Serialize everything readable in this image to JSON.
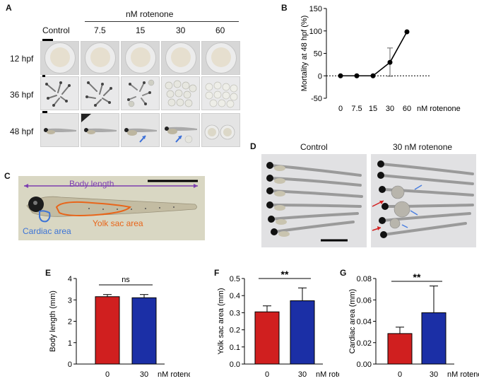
{
  "panel_letters": {
    "a": "A",
    "b": "B",
    "c": "C",
    "d": "D",
    "e": "E",
    "f": "F",
    "g": "G"
  },
  "panelA": {
    "header": "nM rotenone",
    "columns": [
      "Control",
      "7.5",
      "15",
      "30",
      "60"
    ],
    "rows": [
      "12 hpf",
      "36 hpf",
      "48 hpf"
    ]
  },
  "panelC": {
    "body_length_label": "Body length",
    "cardiac_label": "Cardiac area",
    "yolk_label": "Yolk sac area"
  },
  "panelD": {
    "control_label": "Control",
    "treated_label": "30 nM rotenone"
  },
  "chart_data": [
    {
      "panel": "B",
      "type": "line",
      "x": [
        "0",
        "7.5",
        "15",
        "30",
        "60"
      ],
      "y": [
        0,
        0,
        0,
        30,
        98
      ],
      "error_plus": [
        0,
        0,
        0,
        32,
        0
      ],
      "error_minus": [
        0,
        0,
        0,
        31,
        0
      ],
      "ylabel": "Mortality at 48 hpf (%)",
      "xlabel": "nM rotenone",
      "yticks": [
        -50,
        0,
        50,
        100,
        150
      ],
      "ylim": [
        -50,
        150
      ],
      "reference_line": 0
    },
    {
      "panel": "E",
      "type": "bar",
      "categories": [
        "0",
        "30"
      ],
      "values": [
        3.15,
        3.1
      ],
      "errors": [
        0.1,
        0.15
      ],
      "colors": [
        "#d01f1f",
        "#1b2fa6"
      ],
      "ylabel": "Body length (mm)",
      "xlabel": "nM rotenone",
      "yticks": [
        "0",
        "1",
        "2",
        "3",
        "4"
      ],
      "ylim": [
        0,
        4
      ],
      "significance": "ns"
    },
    {
      "panel": "F",
      "type": "bar",
      "categories": [
        "0",
        "30"
      ],
      "values": [
        0.305,
        0.37
      ],
      "errors": [
        0.035,
        0.075
      ],
      "colors": [
        "#d01f1f",
        "#1b2fa6"
      ],
      "ylabel": "Yolk sac area (mm)",
      "xlabel": "nM rotenone",
      "yticks": [
        "0.0",
        "0.1",
        "0.2",
        "0.3",
        "0.4",
        "0.5"
      ],
      "ylim": [
        0,
        0.5
      ],
      "significance": "**"
    },
    {
      "panel": "G",
      "type": "bar",
      "categories": [
        "0",
        "30"
      ],
      "values": [
        0.0285,
        0.048
      ],
      "errors": [
        0.006,
        0.025
      ],
      "colors": [
        "#d01f1f",
        "#1b2fa6"
      ],
      "ylabel": "Cardiac area (mm)",
      "xlabel": "nM rotenone",
      "yticks": [
        "0.00",
        "0.02",
        "0.04",
        "0.06",
        "0.08"
      ],
      "ylim": [
        0,
        0.08
      ],
      "significance": "**"
    }
  ]
}
